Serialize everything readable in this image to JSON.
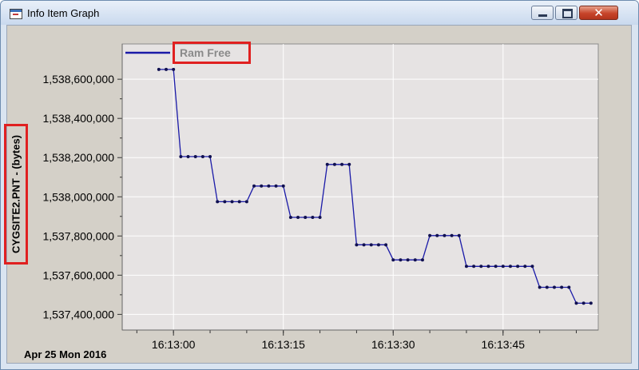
{
  "window": {
    "title": "Info Item Graph",
    "icon": "graph-window-icon",
    "controls": {
      "minimize": "minimize-icon",
      "maximize": "maximize-icon",
      "close_glyph": "✕"
    }
  },
  "footer": {
    "date": "Apr 25 Mon 2016"
  },
  "chart_data": {
    "type": "line",
    "title": "",
    "ylabel": "CYGSITE2.PNT - (bytes)",
    "xlabel": "",
    "ylim": [
      1537320000,
      1538780000
    ],
    "xlim": [
      "16:12:53",
      "16:13:58"
    ],
    "x_tick_labels": [
      "16:13:00",
      "16:13:15",
      "16:13:30",
      "16:13:45"
    ],
    "y_tick_labels": [
      "1,537,400,000",
      "1,537,600,000",
      "1,537,800,000",
      "1,538,000,000",
      "1,538,200,000",
      "1,538,400,000",
      "1,538,600,000"
    ],
    "y_ticks": [
      1537400000,
      1537600000,
      1537800000,
      1538000000,
      1538200000,
      1538400000,
      1538600000
    ],
    "grid": true,
    "legend": "top-left",
    "colors": {
      "line": "#1a1aa8",
      "plot_background": "#e6e3e3",
      "grid": "#ffffff"
    },
    "series": [
      {
        "name": "Ram Free",
        "points": [
          [
            "16:12:58",
            1538650000
          ],
          [
            "16:12:59",
            1538650000
          ],
          [
            "16:13:00",
            1538650000
          ],
          [
            "16:13:01",
            1538205000
          ],
          [
            "16:13:02",
            1538205000
          ],
          [
            "16:13:03",
            1538205000
          ],
          [
            "16:13:04",
            1538205000
          ],
          [
            "16:13:05",
            1538205000
          ],
          [
            "16:13:06",
            1537975000
          ],
          [
            "16:13:07",
            1537975000
          ],
          [
            "16:13:08",
            1537975000
          ],
          [
            "16:13:09",
            1537975000
          ],
          [
            "16:13:10",
            1537975000
          ],
          [
            "16:13:11",
            1538055000
          ],
          [
            "16:13:12",
            1538055000
          ],
          [
            "16:13:13",
            1538055000
          ],
          [
            "16:13:14",
            1538055000
          ],
          [
            "16:13:15",
            1538055000
          ],
          [
            "16:13:16",
            1537895000
          ],
          [
            "16:13:17",
            1537895000
          ],
          [
            "16:13:18",
            1537895000
          ],
          [
            "16:13:19",
            1537895000
          ],
          [
            "16:13:20",
            1537895000
          ],
          [
            "16:13:21",
            1538165000
          ],
          [
            "16:13:22",
            1538165000
          ],
          [
            "16:13:23",
            1538165000
          ],
          [
            "16:13:24",
            1538165000
          ],
          [
            "16:13:25",
            1537755000
          ],
          [
            "16:13:26",
            1537755000
          ],
          [
            "16:13:27",
            1537755000
          ],
          [
            "16:13:28",
            1537755000
          ],
          [
            "16:13:29",
            1537755000
          ],
          [
            "16:13:30",
            1537678000
          ],
          [
            "16:13:31",
            1537678000
          ],
          [
            "16:13:32",
            1537678000
          ],
          [
            "16:13:33",
            1537678000
          ],
          [
            "16:13:34",
            1537678000
          ],
          [
            "16:13:35",
            1537802000
          ],
          [
            "16:13:36",
            1537802000
          ],
          [
            "16:13:37",
            1537802000
          ],
          [
            "16:13:38",
            1537802000
          ],
          [
            "16:13:39",
            1537802000
          ],
          [
            "16:13:40",
            1537645000
          ],
          [
            "16:13:41",
            1537645000
          ],
          [
            "16:13:42",
            1537645000
          ],
          [
            "16:13:43",
            1537645000
          ],
          [
            "16:13:44",
            1537645000
          ],
          [
            "16:13:45",
            1537645000
          ],
          [
            "16:13:46",
            1537645000
          ],
          [
            "16:13:47",
            1537645000
          ],
          [
            "16:13:48",
            1537645000
          ],
          [
            "16:13:49",
            1537645000
          ],
          [
            "16:13:50",
            1537538000
          ],
          [
            "16:13:51",
            1537538000
          ],
          [
            "16:13:52",
            1537538000
          ],
          [
            "16:13:53",
            1537538000
          ],
          [
            "16:13:54",
            1537538000
          ],
          [
            "16:13:55",
            1537457000
          ],
          [
            "16:13:56",
            1537457000
          ],
          [
            "16:13:57",
            1537457000
          ]
        ]
      }
    ]
  }
}
